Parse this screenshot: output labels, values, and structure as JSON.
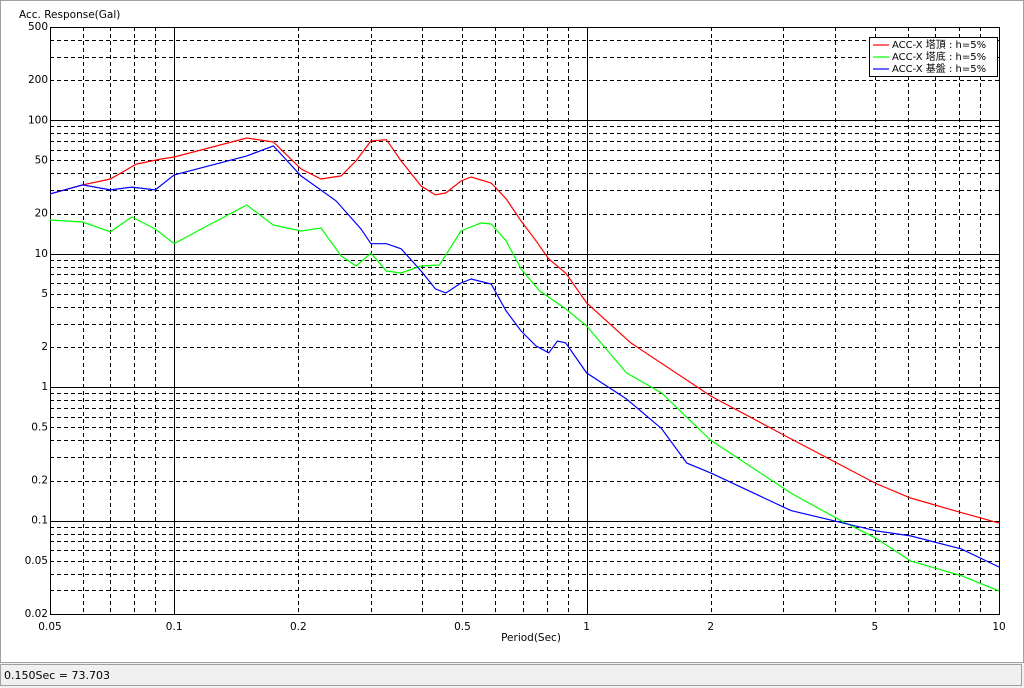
{
  "chart_data": {
    "type": "line",
    "title": "Acc. Response(Gal)",
    "x_label": "Period(Sec)",
    "log_x": true,
    "log_y": true,
    "grid": true,
    "legend": "top-right",
    "xlim": [
      0.05,
      10
    ],
    "xticks": [
      0.05,
      0.1,
      0.2,
      0.5,
      1,
      2,
      5,
      10
    ],
    "xminorticks": [
      0.06,
      0.07,
      0.08,
      0.09,
      0.3,
      0.4,
      0.6,
      0.7,
      0.8,
      0.9,
      3,
      4,
      6,
      7,
      8,
      9
    ],
    "ylim": [
      0.02,
      500
    ],
    "yticks": [
      0.02,
      0.05,
      0.1,
      0.2,
      0.5,
      1,
      2,
      5,
      10,
      20,
      50,
      100,
      200,
      500
    ],
    "yminorticks": [
      0.03,
      0.04,
      0.06,
      0.07,
      0.08,
      0.09,
      0.3,
      0.4,
      0.6,
      0.7,
      0.8,
      0.9,
      3,
      4,
      6,
      7,
      8,
      9,
      30,
      40,
      60,
      70,
      80,
      90,
      300,
      400
    ],
    "series": [
      {
        "name": "ACC-X 塔頂 : h=5%",
        "color": "#ff0000",
        "x": [
          0.05,
          0.06,
          0.07,
          0.081,
          0.093,
          0.1,
          0.15,
          0.174,
          0.203,
          0.227,
          0.254,
          0.276,
          0.3,
          0.327,
          0.355,
          0.397,
          0.43,
          0.456,
          0.496,
          0.525,
          0.587,
          0.638,
          0.694,
          0.754,
          0.81,
          0.89,
          1,
          1.28,
          1.79,
          2,
          3.13,
          5.03,
          6.1,
          8.1,
          10
        ],
        "values": [
          28.1,
          32.8,
          36.3,
          47,
          51.3,
          53.1,
          73.7,
          68.8,
          43.2,
          36.3,
          38.3,
          49.6,
          70,
          71.6,
          49.6,
          32.2,
          27.6,
          28.6,
          35.1,
          37.6,
          33.9,
          25.8,
          17.6,
          12.5,
          9.14,
          7.18,
          4.29,
          2.15,
          1.08,
          0.86,
          0.41,
          0.19,
          0.148,
          0.115,
          0.096
        ]
      },
      {
        "name": "ACC-X 塔底 : h=5%",
        "color": "#00ff00",
        "x": [
          0.05,
          0.06,
          0.07,
          0.079,
          0.09,
          0.1,
          0.119,
          0.15,
          0.174,
          0.203,
          0.227,
          0.254,
          0.276,
          0.3,
          0.327,
          0.355,
          0.397,
          0.44,
          0.496,
          0.554,
          0.587,
          0.638,
          0.694,
          0.77,
          0.89,
          1,
          1.25,
          1.52,
          2,
          3.13,
          4.14,
          5.03,
          6.1,
          8.1,
          10
        ],
        "values": [
          17.9,
          17.3,
          14.6,
          18.9,
          15.3,
          11.9,
          15.9,
          23.2,
          16.4,
          14.8,
          15.6,
          9.64,
          8.1,
          10.1,
          7.43,
          7.18,
          8.1,
          8.24,
          14.8,
          17,
          16.7,
          12.5,
          7.69,
          5.26,
          3.86,
          2.88,
          1.28,
          0.906,
          0.4,
          0.161,
          0.1,
          0.074,
          0.05,
          0.0387,
          0.0298
        ]
      },
      {
        "name": "ACC-X 基盤 : h=5%",
        "color": "#0000ff",
        "x": [
          0.05,
          0.06,
          0.07,
          0.079,
          0.09,
          0.1,
          0.15,
          0.174,
          0.203,
          0.247,
          0.284,
          0.3,
          0.327,
          0.355,
          0.397,
          0.43,
          0.456,
          0.496,
          0.525,
          0.587,
          0.638,
          0.694,
          0.754,
          0.81,
          0.85,
          0.89,
          1,
          1.25,
          1.52,
          1.75,
          2,
          3.13,
          5.03,
          6.1,
          8.1,
          10
        ],
        "values": [
          28.1,
          32.8,
          30.1,
          31.6,
          30.1,
          39,
          54.1,
          64.3,
          38.3,
          24.9,
          15.3,
          11.9,
          11.9,
          10.9,
          7.43,
          5.45,
          5.08,
          6.04,
          6.47,
          5.94,
          3.73,
          2.64,
          2.04,
          1.81,
          2.22,
          2.15,
          1.28,
          0.817,
          0.49,
          0.27,
          0.228,
          0.119,
          0.084,
          0.077,
          0.0615,
          0.045
        ]
      }
    ]
  },
  "status_bar": {
    "text": "0.150Sec = 73.703"
  }
}
